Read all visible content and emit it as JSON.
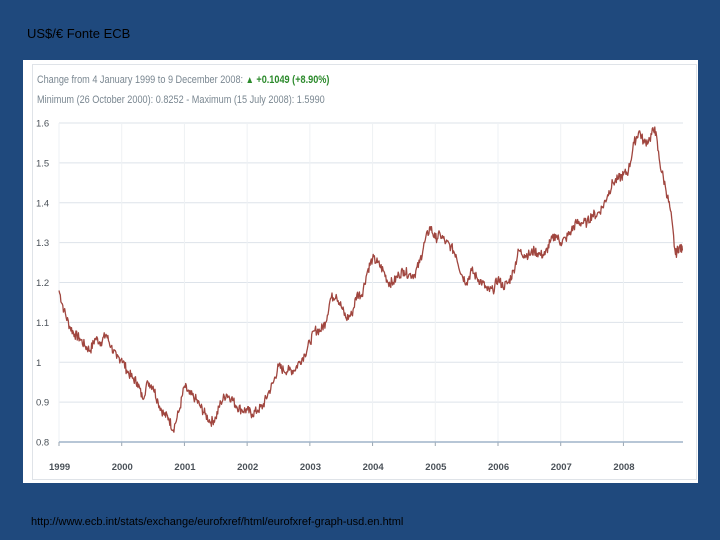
{
  "slide": {
    "title": "US$/€  Fonte ECB",
    "source_url": "http://www.ecb.int/stats/exchange/eurofxref/html/eurofxref-graph-usd.en.html"
  },
  "chart_header": {
    "change_label": "Change from 4 January 1999 to 9 December 2008:",
    "change_value": "+0.1049 (+8.90%)",
    "minmax": "Minimum (26 October 2000): 0.8252 - Maximum (15 July 2008): 1.5990"
  },
  "colors": {
    "background": "#1f497d",
    "line": "#a0463f",
    "grid": "#dde3ea",
    "up_arrow": "#2b8a2b"
  },
  "chart_data": {
    "type": "line",
    "title": "",
    "xlabel": "",
    "ylabel": "",
    "xlim": [
      1999.0,
      2008.95
    ],
    "ylim": [
      0.8,
      1.6
    ],
    "yticks": [
      {
        "value": 0.8,
        "label": "0.8"
      },
      {
        "value": 0.9,
        "label": "0.9"
      },
      {
        "value": 1.0,
        "label": "1"
      },
      {
        "value": 1.1,
        "label": "1.1"
      },
      {
        "value": 1.2,
        "label": "1.2"
      },
      {
        "value": 1.3,
        "label": "1.3"
      },
      {
        "value": 1.4,
        "label": "1.4"
      },
      {
        "value": 1.5,
        "label": "1.5"
      },
      {
        "value": 1.6,
        "label": "1.6"
      }
    ],
    "xticks": [
      {
        "value": 1999,
        "label": "1999"
      },
      {
        "value": 2000,
        "label": "2000"
      },
      {
        "value": 2001,
        "label": "2001"
      },
      {
        "value": 2002,
        "label": "2002"
      },
      {
        "value": 2003,
        "label": "2003"
      },
      {
        "value": 2004,
        "label": "2004"
      },
      {
        "value": 2005,
        "label": "2005"
      },
      {
        "value": 2006,
        "label": "2006"
      },
      {
        "value": 2007,
        "label": "2007"
      },
      {
        "value": 2008,
        "label": "2008"
      }
    ],
    "grid": true,
    "series": [
      {
        "name": "USD per EUR",
        "points": [
          [
            1999.0,
            1.18
          ],
          [
            1999.08,
            1.13
          ],
          [
            1999.17,
            1.09
          ],
          [
            1999.25,
            1.07
          ],
          [
            1999.33,
            1.06
          ],
          [
            1999.42,
            1.04
          ],
          [
            1999.5,
            1.03
          ],
          [
            1999.58,
            1.06
          ],
          [
            1999.67,
            1.05
          ],
          [
            1999.75,
            1.07
          ],
          [
            1999.83,
            1.04
          ],
          [
            1999.92,
            1.01
          ],
          [
            2000.0,
            1.01
          ],
          [
            2000.08,
            0.98
          ],
          [
            2000.17,
            0.96
          ],
          [
            2000.25,
            0.95
          ],
          [
            2000.33,
            0.91
          ],
          [
            2000.42,
            0.95
          ],
          [
            2000.5,
            0.94
          ],
          [
            2000.58,
            0.9
          ],
          [
            2000.67,
            0.87
          ],
          [
            2000.75,
            0.86
          ],
          [
            2000.82,
            0.83
          ],
          [
            2000.92,
            0.88
          ],
          [
            2001.0,
            0.94
          ],
          [
            2001.08,
            0.92
          ],
          [
            2001.17,
            0.91
          ],
          [
            2001.25,
            0.89
          ],
          [
            2001.33,
            0.87
          ],
          [
            2001.42,
            0.85
          ],
          [
            2001.5,
            0.86
          ],
          [
            2001.58,
            0.9
          ],
          [
            2001.67,
            0.92
          ],
          [
            2001.75,
            0.91
          ],
          [
            2001.83,
            0.89
          ],
          [
            2001.92,
            0.88
          ],
          [
            2002.0,
            0.88
          ],
          [
            2002.08,
            0.87
          ],
          [
            2002.17,
            0.88
          ],
          [
            2002.25,
            0.89
          ],
          [
            2002.33,
            0.92
          ],
          [
            2002.42,
            0.95
          ],
          [
            2002.5,
            0.99
          ],
          [
            2002.58,
            0.98
          ],
          [
            2002.67,
            0.98
          ],
          [
            2002.75,
            0.98
          ],
          [
            2002.83,
            1.0
          ],
          [
            2002.92,
            1.02
          ],
          [
            2003.0,
            1.05
          ],
          [
            2003.08,
            1.08
          ],
          [
            2003.17,
            1.08
          ],
          [
            2003.25,
            1.1
          ],
          [
            2003.33,
            1.16
          ],
          [
            2003.42,
            1.17
          ],
          [
            2003.5,
            1.14
          ],
          [
            2003.58,
            1.11
          ],
          [
            2003.67,
            1.12
          ],
          [
            2003.75,
            1.17
          ],
          [
            2003.83,
            1.17
          ],
          [
            2003.92,
            1.23
          ],
          [
            2004.0,
            1.26
          ],
          [
            2004.08,
            1.25
          ],
          [
            2004.17,
            1.23
          ],
          [
            2004.25,
            1.2
          ],
          [
            2004.33,
            1.2
          ],
          [
            2004.42,
            1.22
          ],
          [
            2004.5,
            1.23
          ],
          [
            2004.58,
            1.22
          ],
          [
            2004.67,
            1.22
          ],
          [
            2004.75,
            1.25
          ],
          [
            2004.83,
            1.3
          ],
          [
            2004.92,
            1.34
          ],
          [
            2005.0,
            1.31
          ],
          [
            2005.08,
            1.32
          ],
          [
            2005.17,
            1.3
          ],
          [
            2005.25,
            1.29
          ],
          [
            2005.33,
            1.27
          ],
          [
            2005.42,
            1.22
          ],
          [
            2005.5,
            1.2
          ],
          [
            2005.58,
            1.23
          ],
          [
            2005.67,
            1.21
          ],
          [
            2005.75,
            1.2
          ],
          [
            2005.83,
            1.18
          ],
          [
            2005.92,
            1.18
          ],
          [
            2006.0,
            1.21
          ],
          [
            2006.08,
            1.19
          ],
          [
            2006.17,
            1.2
          ],
          [
            2006.25,
            1.23
          ],
          [
            2006.33,
            1.28
          ],
          [
            2006.42,
            1.27
          ],
          [
            2006.5,
            1.27
          ],
          [
            2006.58,
            1.28
          ],
          [
            2006.67,
            1.27
          ],
          [
            2006.75,
            1.27
          ],
          [
            2006.83,
            1.3
          ],
          [
            2006.92,
            1.32
          ],
          [
            2007.0,
            1.3
          ],
          [
            2007.08,
            1.31
          ],
          [
            2007.17,
            1.33
          ],
          [
            2007.25,
            1.35
          ],
          [
            2007.33,
            1.35
          ],
          [
            2007.42,
            1.35
          ],
          [
            2007.5,
            1.37
          ],
          [
            2007.58,
            1.37
          ],
          [
            2007.67,
            1.39
          ],
          [
            2007.75,
            1.42
          ],
          [
            2007.83,
            1.45
          ],
          [
            2007.92,
            1.46
          ],
          [
            2008.0,
            1.47
          ],
          [
            2008.08,
            1.48
          ],
          [
            2008.17,
            1.55
          ],
          [
            2008.25,
            1.58
          ],
          [
            2008.33,
            1.55
          ],
          [
            2008.42,
            1.56
          ],
          [
            2008.5,
            1.59
          ],
          [
            2008.58,
            1.5
          ],
          [
            2008.67,
            1.44
          ],
          [
            2008.75,
            1.38
          ],
          [
            2008.83,
            1.27
          ],
          [
            2008.89,
            1.29
          ],
          [
            2008.94,
            1.28
          ]
        ]
      }
    ]
  }
}
